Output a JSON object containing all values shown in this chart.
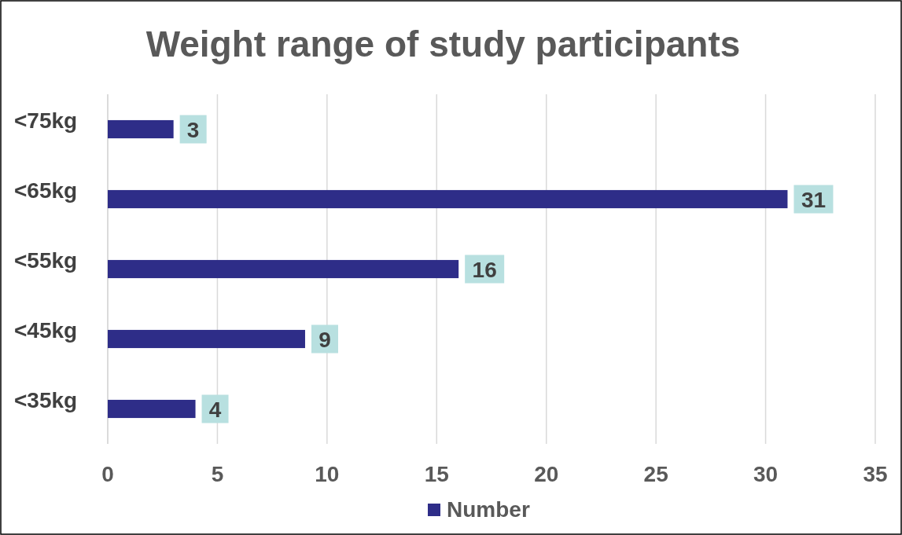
{
  "chart_data": {
    "type": "bar",
    "orientation": "horizontal",
    "title": "Weight range of study participants",
    "categories": [
      "<75kg",
      "<65kg",
      "<55kg",
      "<45kg",
      "<35kg"
    ],
    "series": [
      {
        "name": "Number",
        "color": "#2e2d88",
        "values": [
          3,
          31,
          16,
          9,
          4
        ]
      }
    ],
    "xlim": [
      0,
      35
    ],
    "xticks": [
      0,
      5,
      10,
      15,
      20,
      25,
      30,
      35
    ],
    "grid": "x",
    "legend": "bottom",
    "data_labels": true
  }
}
